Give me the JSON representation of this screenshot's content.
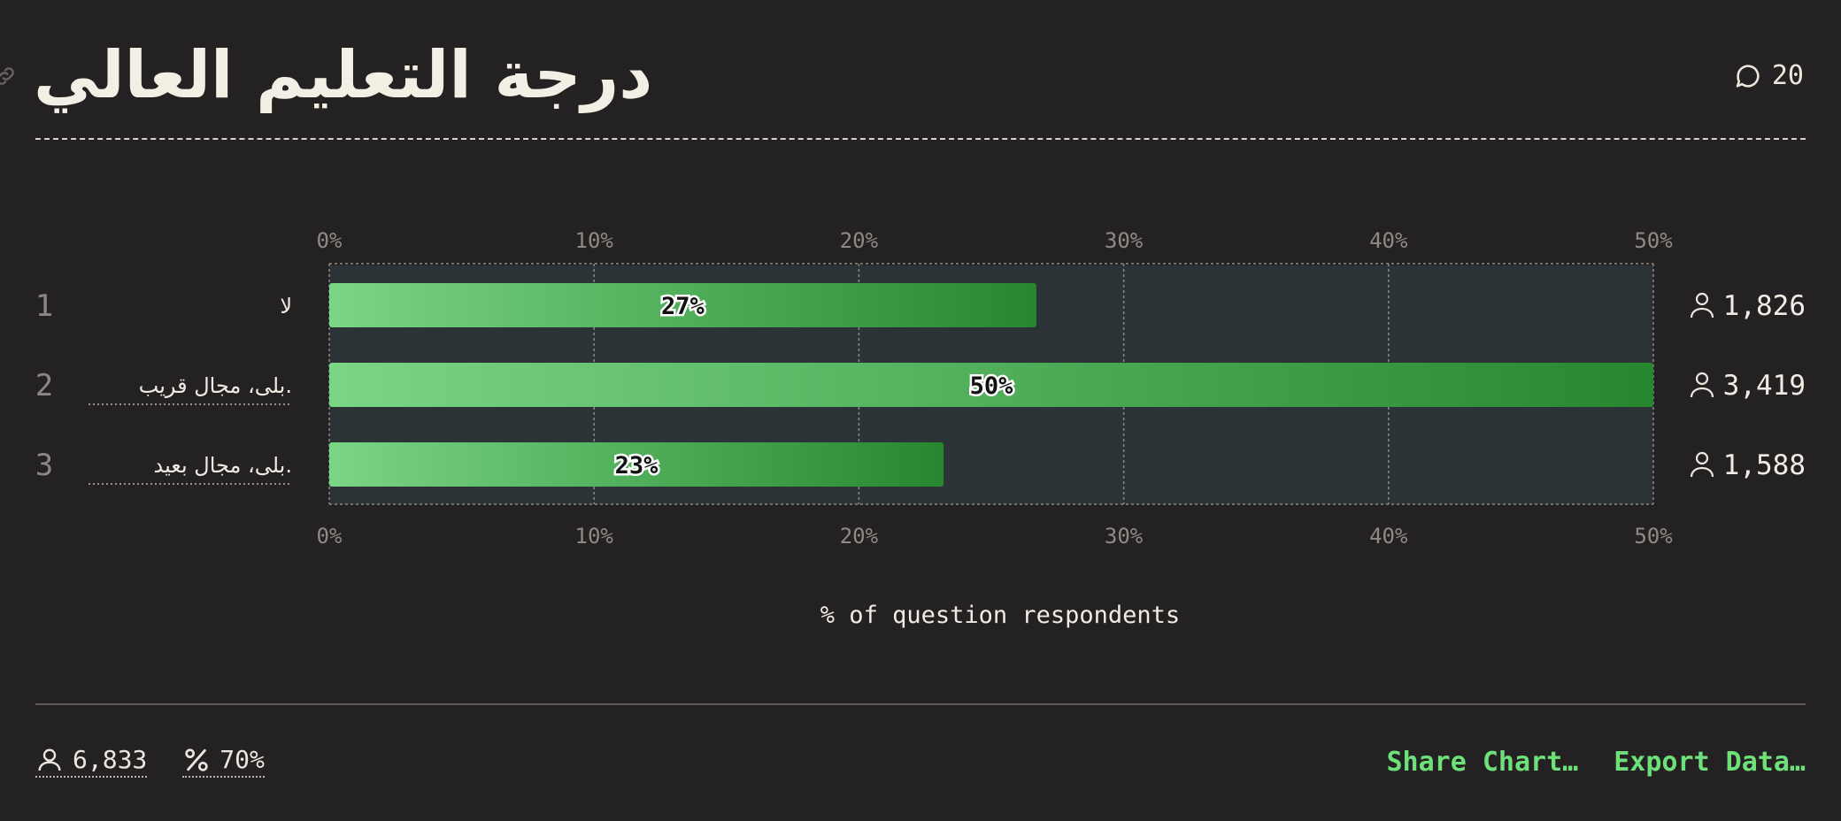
{
  "header": {
    "title": "درجة التعليم العالي",
    "comment_count": "20"
  },
  "chart_data": {
    "type": "bar",
    "orientation": "horizontal",
    "categories": [
      "لا",
      "بلى، مجال قريب.",
      "بلى، مجال بعيد."
    ],
    "ranks": [
      "1",
      "2",
      "3"
    ],
    "values": [
      26.7,
      50,
      23.2
    ],
    "value_labels": [
      "27%",
      "50%",
      "23%"
    ],
    "counts": [
      "1,826",
      "3,419",
      "1,588"
    ],
    "xlim": [
      0,
      50
    ],
    "x_ticks": [
      "0%",
      "10%",
      "20%",
      "30%",
      "40%",
      "50%"
    ],
    "xlabel": "% of question respondents",
    "grid": true,
    "colors": {
      "bar_start": "#7ad585",
      "bar_end": "#27872f",
      "track": "#2c3337"
    }
  },
  "footer": {
    "total_respondents": "6,833",
    "response_rate": "70%",
    "share_label": "Share Chart…",
    "export_label": "Export Data…"
  }
}
